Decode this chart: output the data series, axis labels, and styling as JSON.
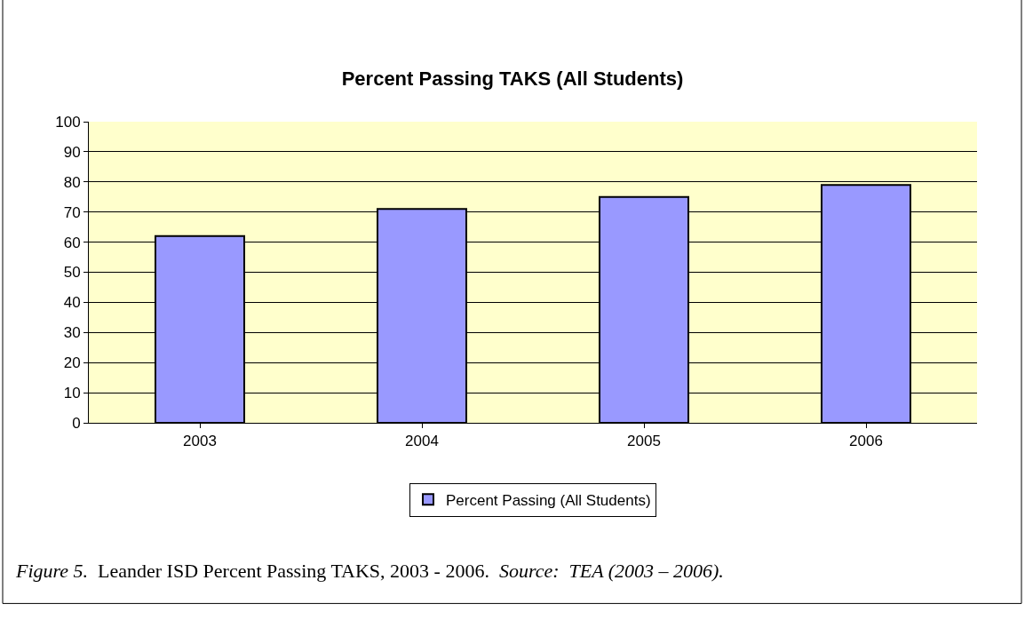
{
  "chart_data": {
    "type": "bar",
    "title": "Percent Passing TAKS (All Students)",
    "categories": [
      "2003",
      "2004",
      "2005",
      "2006"
    ],
    "series": [
      {
        "name": "Percent Passing (All Students)",
        "color": "#9999ff",
        "values": [
          62,
          71,
          75,
          79
        ]
      }
    ],
    "ylim": [
      0,
      100
    ],
    "yticks": [
      0,
      10,
      20,
      30,
      40,
      50,
      60,
      70,
      80,
      90,
      100
    ],
    "grid": "y",
    "legend": "bottom",
    "annotations": [
      "Figure 5.",
      "Leander ISD Percent Passing TAKS, 2003 - 2006.",
      "Source:  TEA (2003 – 2006)."
    ]
  }
}
